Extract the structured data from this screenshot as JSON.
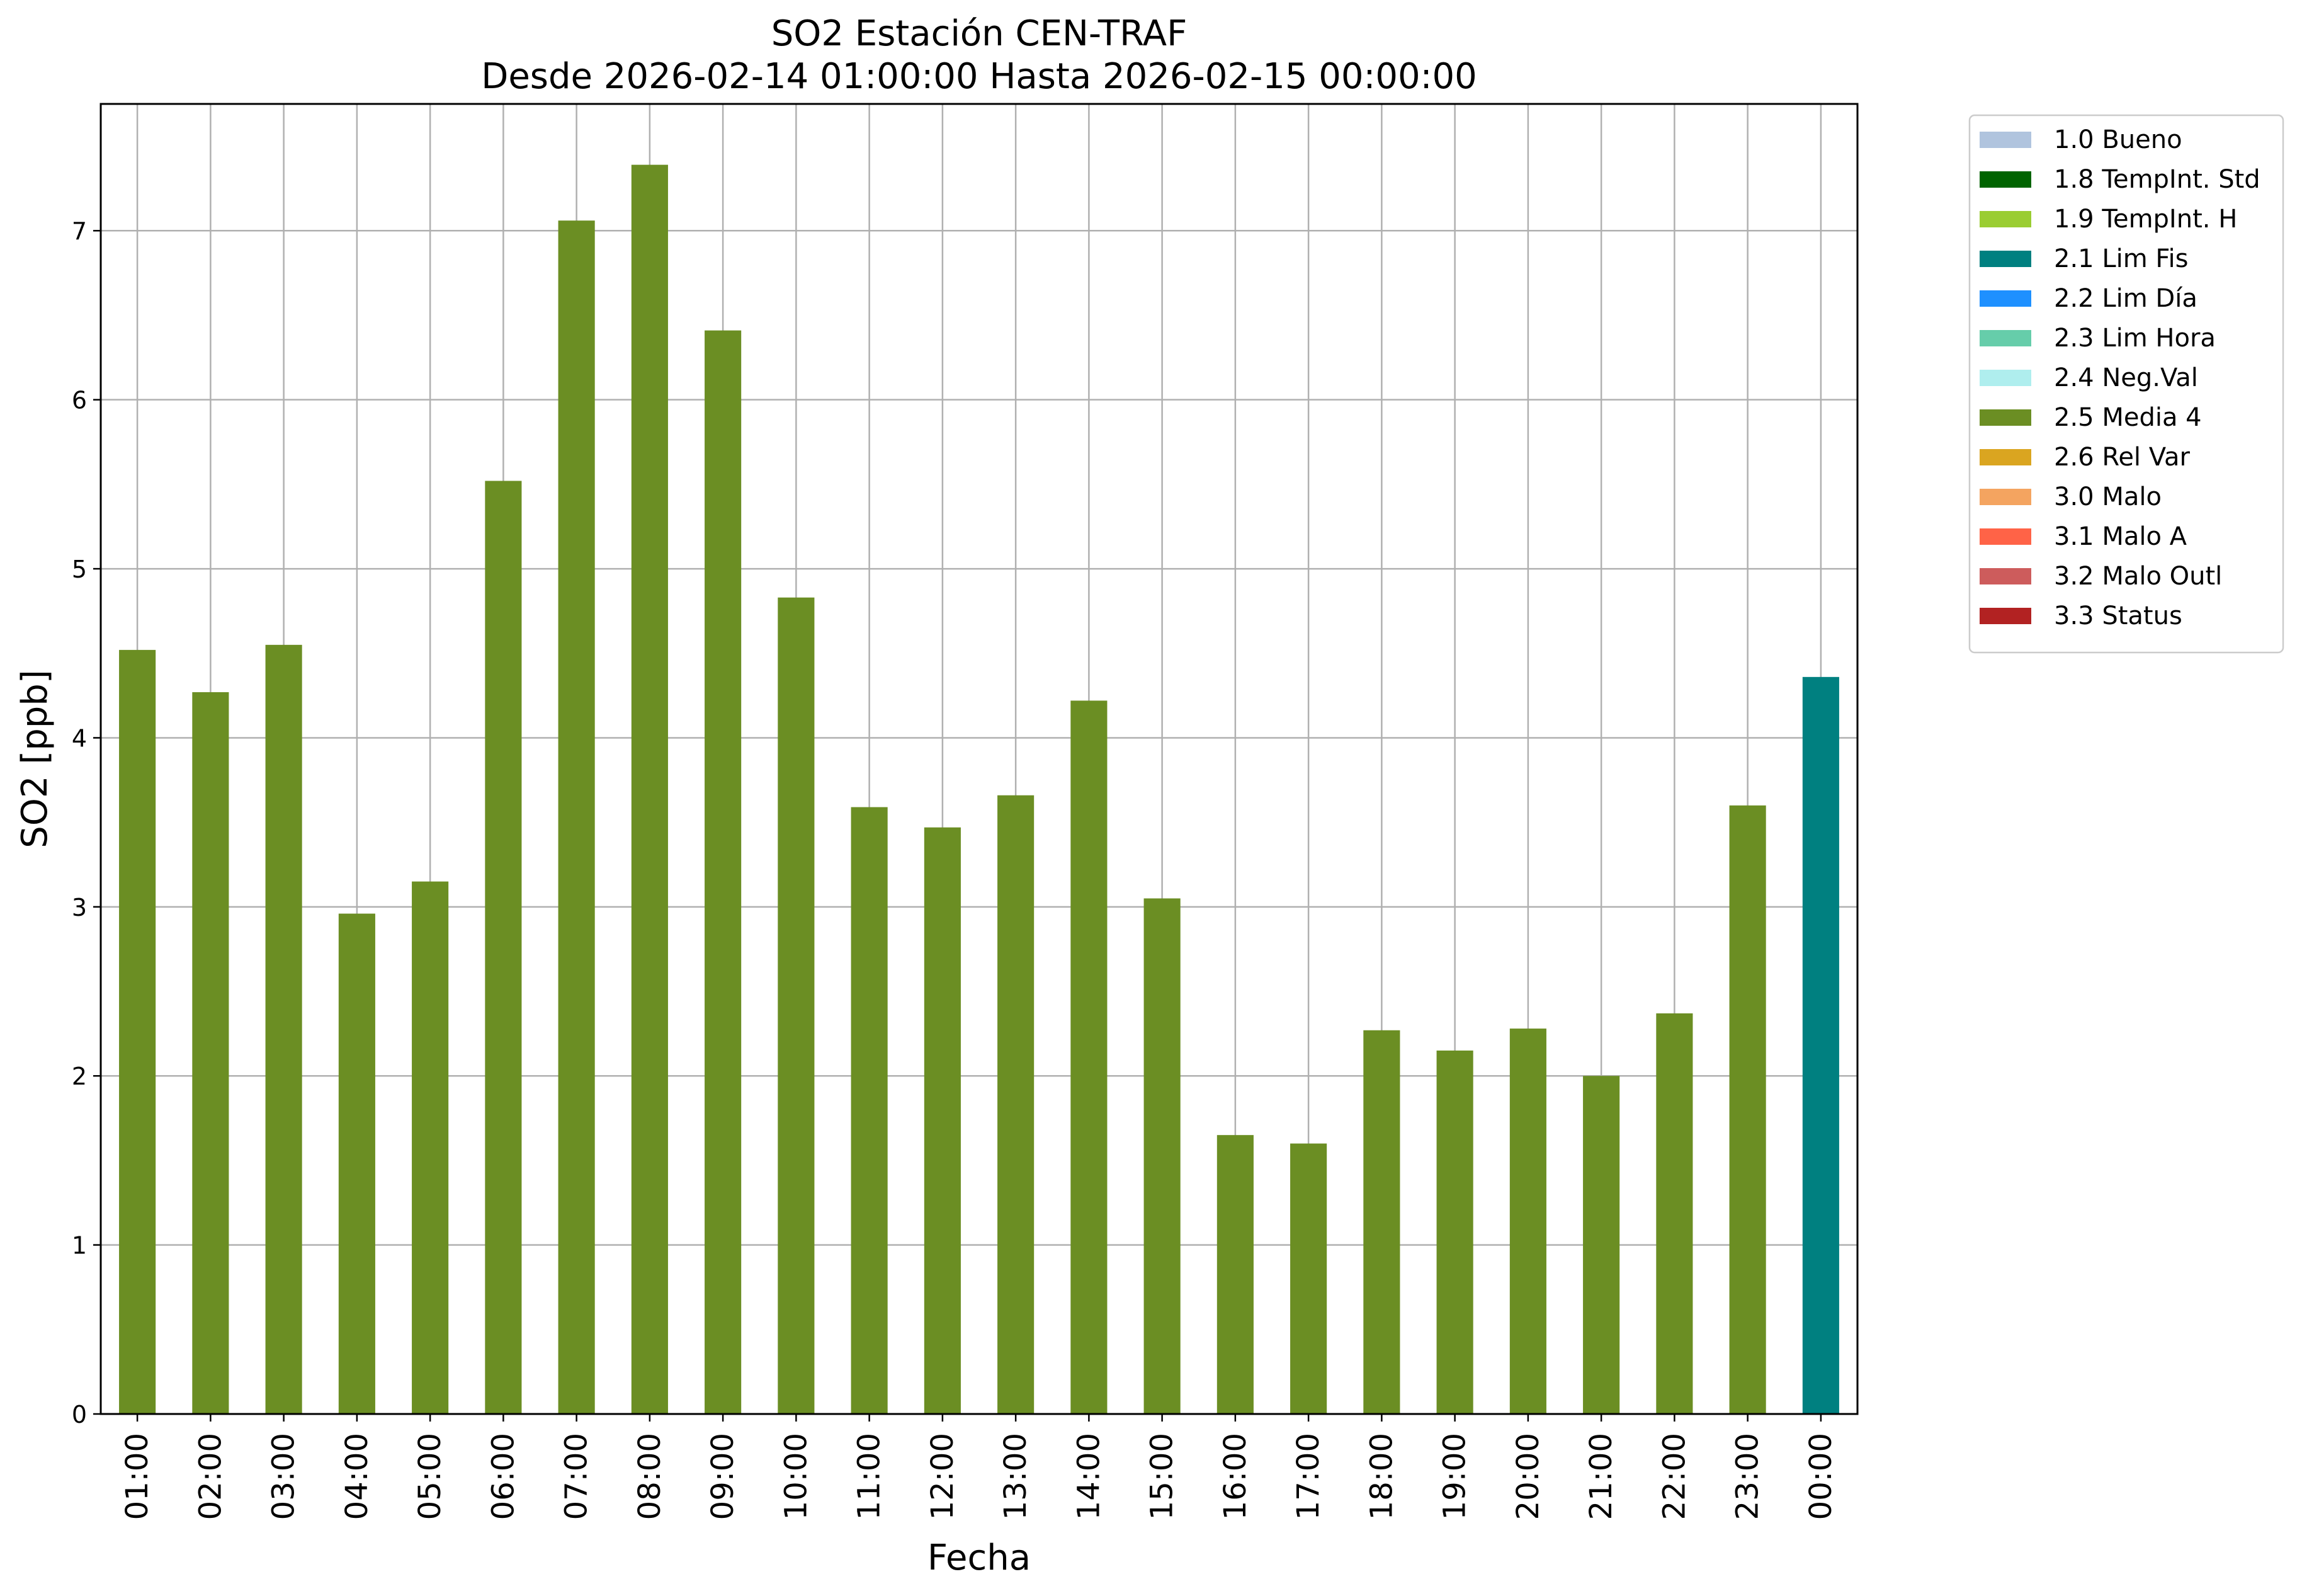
{
  "chart_data": {
    "type": "bar",
    "title": "SO2 Estación CEN-TRAF",
    "subtitle": "Desde 2026-02-14 01:00:00 Hasta 2026-02-15 00:00:00",
    "xlabel": "Fecha",
    "ylabel": "SO2 [ppb]",
    "ylim": [
      0,
      7.75
    ],
    "yticks": [
      0,
      1,
      2,
      3,
      4,
      5,
      6,
      7
    ],
    "grid": true,
    "legend_position": "outside-top-right",
    "categories": [
      "01:00",
      "02:00",
      "03:00",
      "04:00",
      "05:00",
      "06:00",
      "07:00",
      "08:00",
      "09:00",
      "10:00",
      "11:00",
      "12:00",
      "13:00",
      "14:00",
      "15:00",
      "16:00",
      "17:00",
      "18:00",
      "19:00",
      "20:00",
      "21:00",
      "22:00",
      "23:00",
      "00:00"
    ],
    "values": [
      4.52,
      4.27,
      4.55,
      2.96,
      3.15,
      5.52,
      7.06,
      7.39,
      6.41,
      4.83,
      3.59,
      3.47,
      3.66,
      4.22,
      3.05,
      1.65,
      1.6,
      2.27,
      2.15,
      2.28,
      2.0,
      2.37,
      3.6,
      4.36
    ],
    "flags": [
      "2.5 Media 4",
      "2.5 Media 4",
      "2.5 Media 4",
      "2.5 Media 4",
      "2.5 Media 4",
      "2.5 Media 4",
      "2.5 Media 4",
      "2.5 Media 4",
      "2.5 Media 4",
      "2.5 Media 4",
      "2.5 Media 4",
      "2.5 Media 4",
      "2.5 Media 4",
      "2.5 Media 4",
      "2.5 Media 4",
      "2.5 Media 4",
      "2.5 Media 4",
      "2.5 Media 4",
      "2.5 Media 4",
      "2.5 Media 4",
      "2.5 Media 4",
      "2.5 Media 4",
      "2.5 Media 4",
      "2.1 Lim Fis"
    ],
    "legend": [
      {
        "label": "1.0 Bueno",
        "color": "#b0c4de"
      },
      {
        "label": "1.8 TempInt. Std",
        "color": "#006400"
      },
      {
        "label": "1.9 TempInt. H",
        "color": "#9acd32"
      },
      {
        "label": "2.1 Lim Fis",
        "color": "#008080"
      },
      {
        "label": "2.2 Lim Día",
        "color": "#1e90ff"
      },
      {
        "label": "2.3 Lim Hora",
        "color": "#66cdaa"
      },
      {
        "label": "2.4 Neg.Val",
        "color": "#afeeee"
      },
      {
        "label": "2.5 Media 4",
        "color": "#6b8e23"
      },
      {
        "label": "2.6 Rel Var",
        "color": "#daa520"
      },
      {
        "label": "3.0 Malo",
        "color": "#f4a460"
      },
      {
        "label": "3.1 Malo A",
        "color": "#ff6347"
      },
      {
        "label": "3.2 Malo Outl",
        "color": "#cd5c5c"
      },
      {
        "label": "3.3 Status",
        "color": "#b22222"
      }
    ]
  }
}
